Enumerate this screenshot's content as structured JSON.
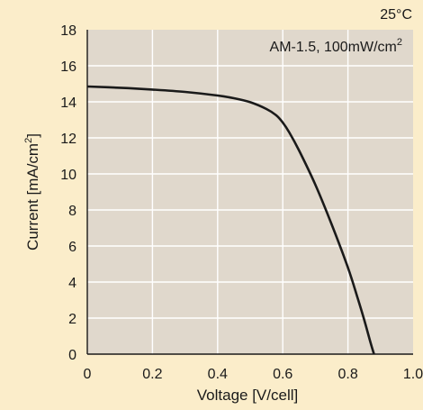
{
  "chart_data": {
    "type": "line",
    "title": "",
    "temperature_label": "25°C",
    "condition_label_main": "AM-1.5, 100mW/cm",
    "condition_label_sup": "2",
    "xlabel": "Voltage [V/cell]",
    "ylabel_main": "Current [mA/cm",
    "ylabel_sup": "2",
    "ylabel_end": "]",
    "xlim": [
      0,
      1.0
    ],
    "ylim": [
      0,
      18
    ],
    "x_ticks": [
      "0",
      "0.2",
      "0.4",
      "0.6",
      "0.8",
      "1.0"
    ],
    "y_ticks": [
      "0",
      "2",
      "4",
      "6",
      "8",
      "10",
      "12",
      "14",
      "16",
      "18"
    ],
    "grid": true,
    "series": [
      {
        "x": [
          0,
          0.1,
          0.2,
          0.3,
          0.4,
          0.45,
          0.5,
          0.55,
          0.58,
          0.6,
          0.62,
          0.65,
          0.7,
          0.75,
          0.8,
          0.83,
          0.85,
          0.87,
          0.88
        ],
        "y": [
          14.85,
          14.78,
          14.68,
          14.55,
          14.35,
          14.2,
          13.98,
          13.6,
          13.25,
          12.85,
          12.3,
          11.3,
          9.4,
          7.2,
          4.8,
          3.1,
          1.9,
          0.6,
          0.0
        ]
      }
    ],
    "colors": {
      "page_background": "#fbedca",
      "plot_background": "#e0d8cc",
      "grid": "#ffffff",
      "line": "#1a1a1a"
    }
  }
}
